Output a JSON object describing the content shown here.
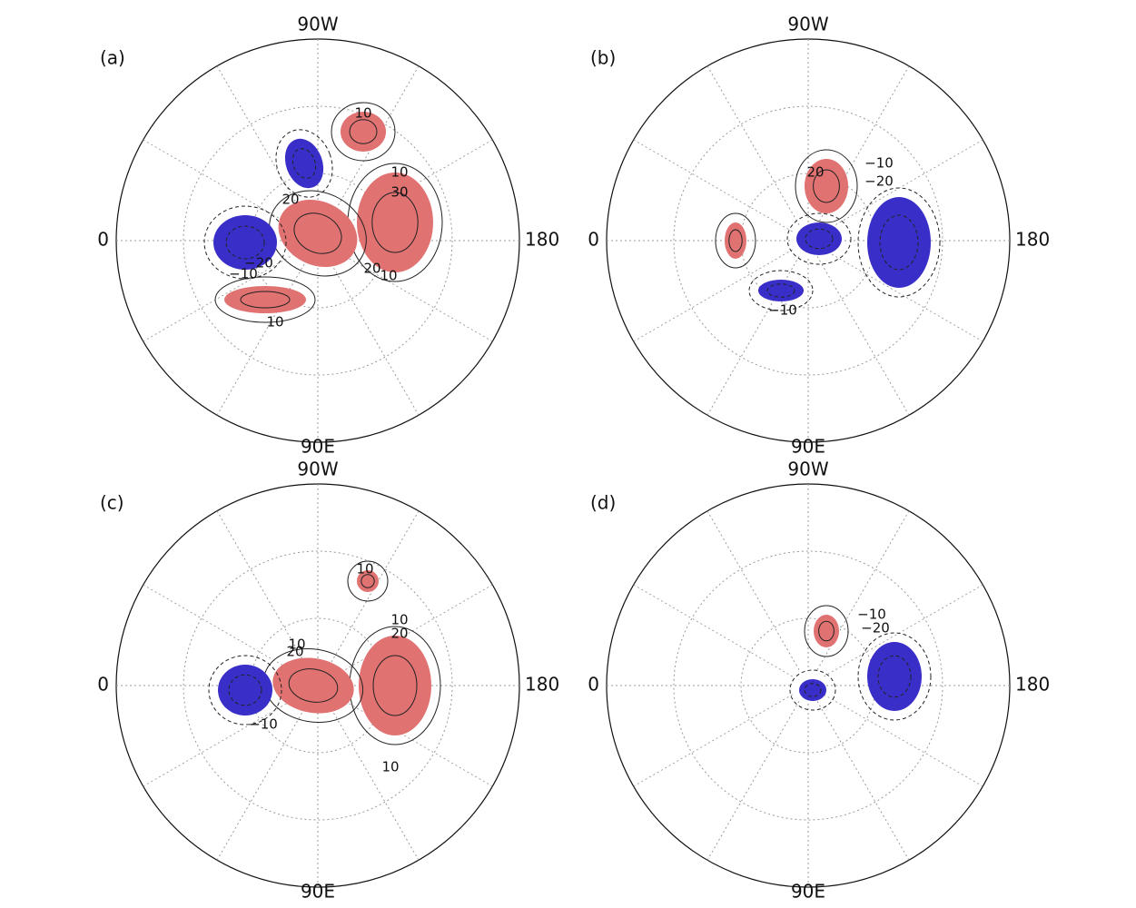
{
  "panels": [
    {
      "label": "(a)",
      "lon_labels": {
        "top": "90W",
        "left": "0",
        "right": "180",
        "bottom": "90E"
      },
      "contour_labels": [
        "10",
        "10",
        "30",
        "20",
        "−20",
        "−10",
        "20",
        "10",
        "10"
      ]
    },
    {
      "label": "(b)",
      "lon_labels": {
        "top": "90W",
        "left": "0",
        "right": "180",
        "bottom": "90E"
      },
      "contour_labels": [
        "20",
        "−10",
        "−20",
        "−10"
      ]
    },
    {
      "label": "(c)",
      "lon_labels": {
        "top": "90W",
        "left": "0",
        "right": "180",
        "bottom": "90E"
      },
      "contour_labels": [
        "10",
        "10",
        "20",
        "10",
        "20",
        "−10",
        "10"
      ]
    },
    {
      "label": "(d)",
      "lon_labels": {
        "top": "90W",
        "left": "0",
        "right": "180",
        "bottom": "90E"
      },
      "contour_labels": [
        "−10",
        "−20"
      ]
    }
  ]
}
